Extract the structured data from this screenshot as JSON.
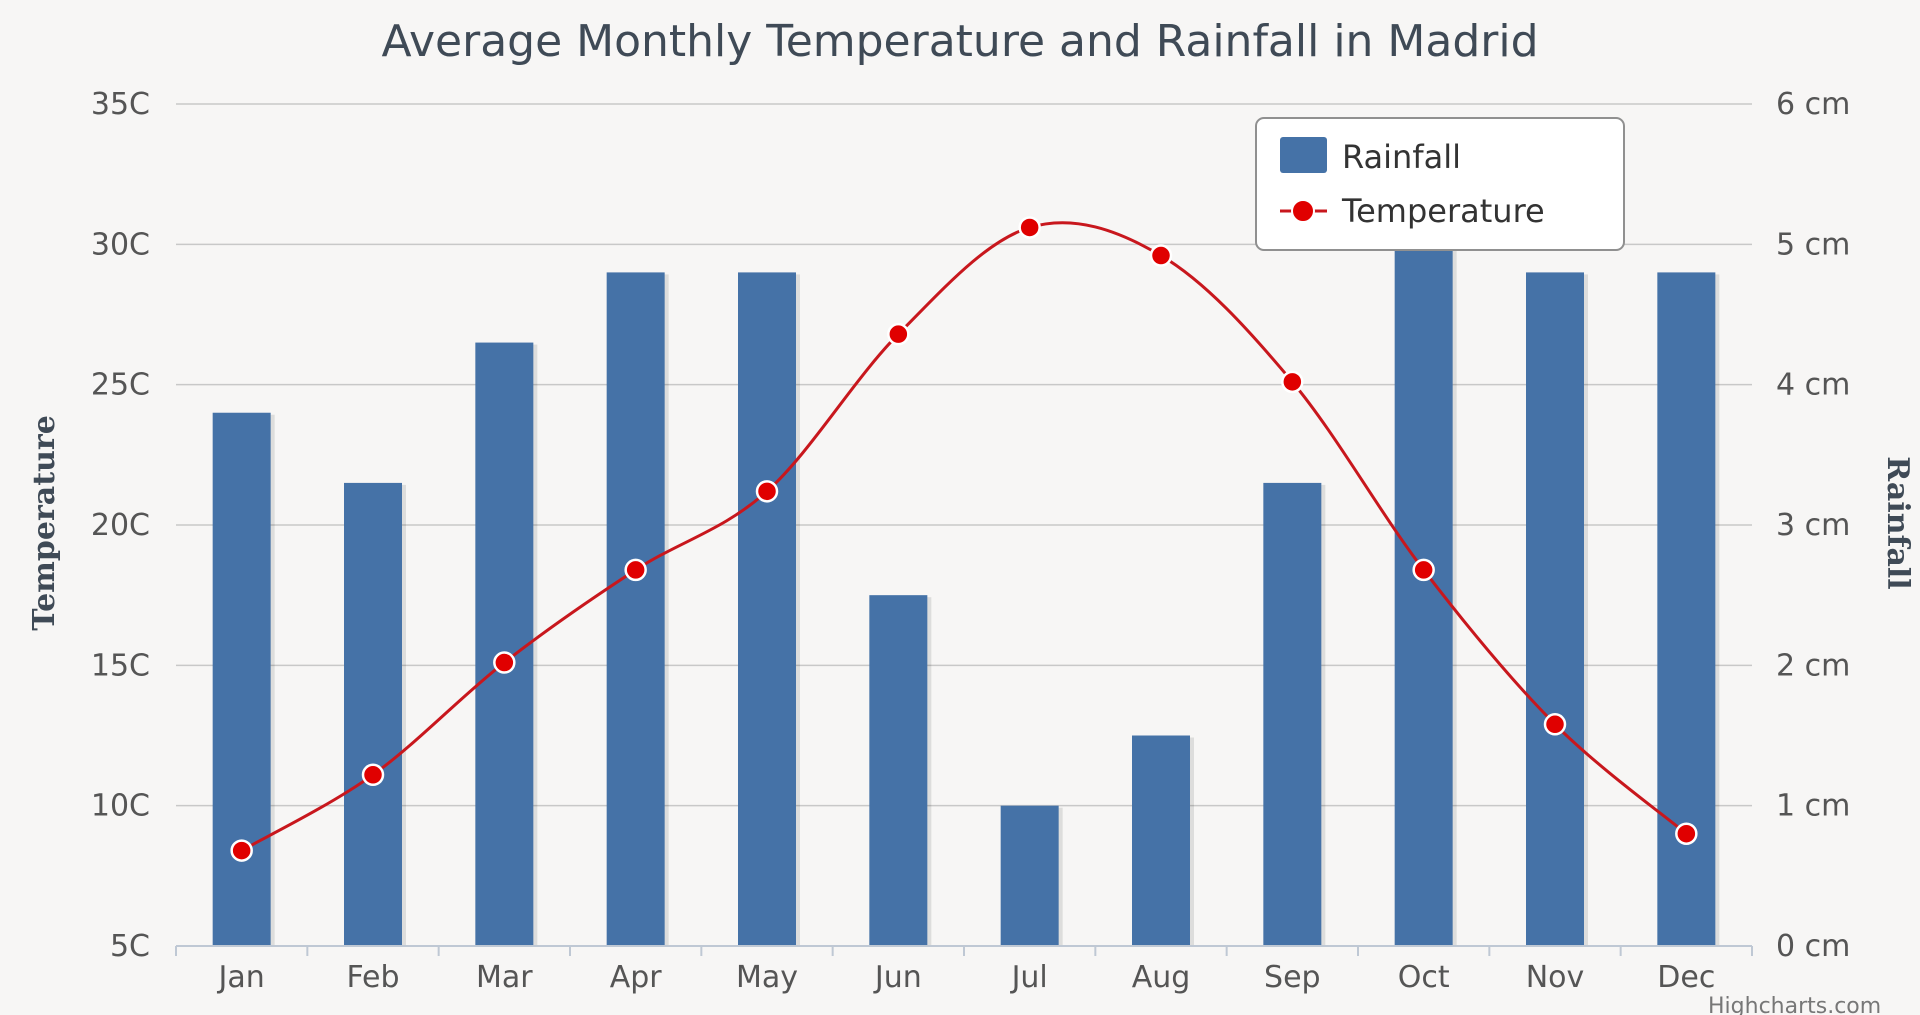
{
  "chart_data": {
    "type": "bar",
    "title": "Average Monthly Temperature and Rainfall in Madrid",
    "categories": [
      "Jan",
      "Feb",
      "Mar",
      "Apr",
      "May",
      "Jun",
      "Jul",
      "Aug",
      "Sep",
      "Oct",
      "Nov",
      "Dec"
    ],
    "y_left": {
      "title": "Temperature",
      "min": 5,
      "max": 35,
      "ticks": [
        5,
        10,
        15,
        20,
        25,
        30,
        35
      ],
      "tick_labels": [
        "5C",
        "10C",
        "15C",
        "20C",
        "25C",
        "30C",
        "35C"
      ]
    },
    "y_right": {
      "title": "Rainfall",
      "min": 0,
      "max": 6,
      "ticks": [
        0,
        1,
        2,
        3,
        4,
        5,
        6
      ],
      "tick_labels": [
        "0 cm",
        "1 cm",
        "2 cm",
        "3 cm",
        "4 cm",
        "5 cm",
        "6 cm"
      ]
    },
    "series": [
      {
        "name": "Rainfall",
        "type": "column",
        "axis": "right",
        "color": "#4572a7",
        "values": [
          3.8,
          3.3,
          4.3,
          4.8,
          4.8,
          2.5,
          1.0,
          1.5,
          3.3,
          5.0,
          4.8,
          4.8
        ]
      },
      {
        "name": "Temperature",
        "type": "spline",
        "axis": "left",
        "color": "#e00000",
        "line_color": "#c8171d",
        "values": [
          8.4,
          11.1,
          15.1,
          18.4,
          21.2,
          26.8,
          30.6,
          29.6,
          25.1,
          18.4,
          12.9,
          9.0
        ]
      }
    ],
    "legend": {
      "position": "top-right",
      "items": [
        "Rainfall",
        "Temperature"
      ]
    },
    "credits": "Highcharts.com"
  }
}
